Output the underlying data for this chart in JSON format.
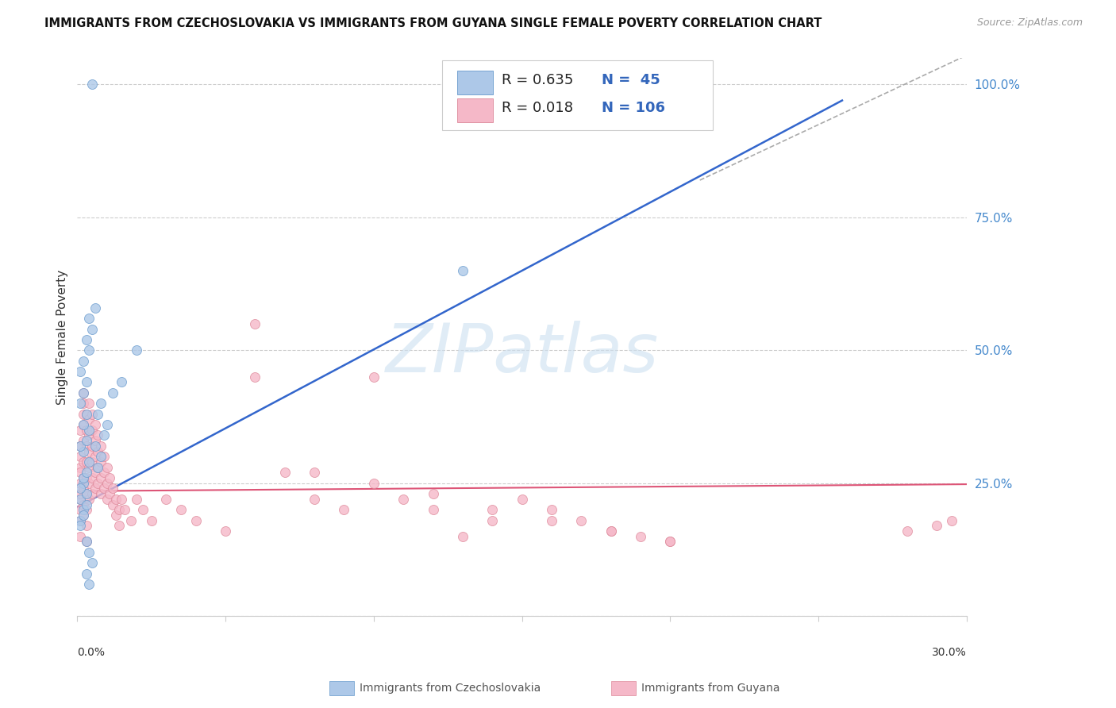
{
  "title": "IMMIGRANTS FROM CZECHOSLOVAKIA VS IMMIGRANTS FROM GUYANA SINGLE FEMALE POVERTY CORRELATION CHART",
  "source": "Source: ZipAtlas.com",
  "ylabel": "Single Female Poverty",
  "xlim": [
    0.0,
    0.3
  ],
  "ylim": [
    0.0,
    1.05
  ],
  "right_ytick_vals": [
    0.0,
    0.25,
    0.5,
    0.75,
    1.0
  ],
  "right_yticklabels": [
    "",
    "25.0%",
    "50.0%",
    "75.0%",
    "100.0%"
  ],
  "blue_face": "#adc8e8",
  "blue_edge": "#6699cc",
  "blue_line": "#3366cc",
  "pink_face": "#f5b8c8",
  "pink_edge": "#dd8899",
  "pink_line": "#dd5577",
  "grid_color": "#cccccc",
  "dashed_color": "#aaaaaa",
  "watermark_color": "#cce0f0",
  "background": "#ffffff",
  "legend_R1": "R = 0.635",
  "legend_N1": "N =  45",
  "legend_R2": "R = 0.018",
  "legend_N2": "N = 106",
  "legend_text_color": "#3366bb",
  "right_axis_color": "#4488cc",
  "title_color": "#111111",
  "source_color": "#999999",
  "label_color": "#555555",
  "bottom_legend1": "Immigrants from Czechoslovakia",
  "bottom_legend2": "Immigrants from Guyana",
  "blue_line_x0": 0.0,
  "blue_line_y0": 0.205,
  "blue_line_x1": 0.258,
  "blue_line_y1": 0.97,
  "dash_line_x0": 0.21,
  "dash_line_y0": 0.82,
  "dash_line_x1": 0.3,
  "dash_line_y1": 1.055,
  "pink_line_x0": 0.0,
  "pink_line_y0": 0.235,
  "pink_line_x1": 0.3,
  "pink_line_y1": 0.248,
  "czech_x": [
    0.001,
    0.002,
    0.001,
    0.003,
    0.002,
    0.001,
    0.003,
    0.002,
    0.001,
    0.002,
    0.003,
    0.004,
    0.002,
    0.001,
    0.003,
    0.004,
    0.002,
    0.003,
    0.001,
    0.002,
    0.003,
    0.001,
    0.002,
    0.004,
    0.003,
    0.005,
    0.004,
    0.006,
    0.003,
    0.004,
    0.005,
    0.003,
    0.004,
    0.007,
    0.008,
    0.006,
    0.009,
    0.01,
    0.007,
    0.008,
    0.012,
    0.015,
    0.02,
    0.13,
    0.005
  ],
  "czech_y": [
    0.22,
    0.2,
    0.18,
    0.21,
    0.19,
    0.17,
    0.23,
    0.25,
    0.24,
    0.26,
    0.27,
    0.29,
    0.31,
    0.32,
    0.33,
    0.35,
    0.36,
    0.38,
    0.4,
    0.42,
    0.44,
    0.46,
    0.48,
    0.5,
    0.52,
    0.54,
    0.56,
    0.58,
    0.14,
    0.12,
    0.1,
    0.08,
    0.06,
    0.28,
    0.3,
    0.32,
    0.34,
    0.36,
    0.38,
    0.4,
    0.42,
    0.44,
    0.5,
    0.65,
    1.0
  ],
  "guyana_x": [
    0.001,
    0.001,
    0.001,
    0.001,
    0.001,
    0.001,
    0.001,
    0.001,
    0.001,
    0.001,
    0.001,
    0.002,
    0.002,
    0.002,
    0.002,
    0.002,
    0.002,
    0.002,
    0.002,
    0.002,
    0.002,
    0.003,
    0.003,
    0.003,
    0.003,
    0.003,
    0.003,
    0.003,
    0.003,
    0.003,
    0.004,
    0.004,
    0.004,
    0.004,
    0.004,
    0.004,
    0.004,
    0.005,
    0.005,
    0.005,
    0.005,
    0.005,
    0.005,
    0.006,
    0.006,
    0.006,
    0.006,
    0.006,
    0.007,
    0.007,
    0.007,
    0.007,
    0.008,
    0.008,
    0.008,
    0.008,
    0.009,
    0.009,
    0.009,
    0.01,
    0.01,
    0.01,
    0.011,
    0.011,
    0.012,
    0.012,
    0.013,
    0.013,
    0.014,
    0.014,
    0.015,
    0.016,
    0.018,
    0.02,
    0.022,
    0.025,
    0.03,
    0.035,
    0.04,
    0.05,
    0.06,
    0.07,
    0.08,
    0.09,
    0.1,
    0.11,
    0.12,
    0.13,
    0.14,
    0.15,
    0.16,
    0.17,
    0.18,
    0.19,
    0.2,
    0.06,
    0.08,
    0.1,
    0.12,
    0.14,
    0.16,
    0.18,
    0.2,
    0.28,
    0.29,
    0.295
  ],
  "guyana_y": [
    0.22,
    0.25,
    0.28,
    0.2,
    0.18,
    0.15,
    0.3,
    0.27,
    0.23,
    0.32,
    0.35,
    0.38,
    0.4,
    0.42,
    0.36,
    0.33,
    0.29,
    0.26,
    0.24,
    0.21,
    0.19,
    0.38,
    0.35,
    0.32,
    0.29,
    0.26,
    0.23,
    0.2,
    0.17,
    0.14,
    0.4,
    0.37,
    0.34,
    0.31,
    0.28,
    0.25,
    0.22,
    0.38,
    0.35,
    0.32,
    0.29,
    0.26,
    0.23,
    0.36,
    0.33,
    0.3,
    0.27,
    0.24,
    0.34,
    0.31,
    0.28,
    0.25,
    0.32,
    0.29,
    0.26,
    0.23,
    0.3,
    0.27,
    0.24,
    0.28,
    0.25,
    0.22,
    0.26,
    0.23,
    0.24,
    0.21,
    0.22,
    0.19,
    0.2,
    0.17,
    0.22,
    0.2,
    0.18,
    0.22,
    0.2,
    0.18,
    0.22,
    0.2,
    0.18,
    0.16,
    0.45,
    0.27,
    0.22,
    0.2,
    0.45,
    0.22,
    0.2,
    0.15,
    0.18,
    0.22,
    0.2,
    0.18,
    0.16,
    0.15,
    0.14,
    0.55,
    0.27,
    0.25,
    0.23,
    0.2,
    0.18,
    0.16,
    0.14,
    0.16,
    0.17,
    0.18
  ]
}
